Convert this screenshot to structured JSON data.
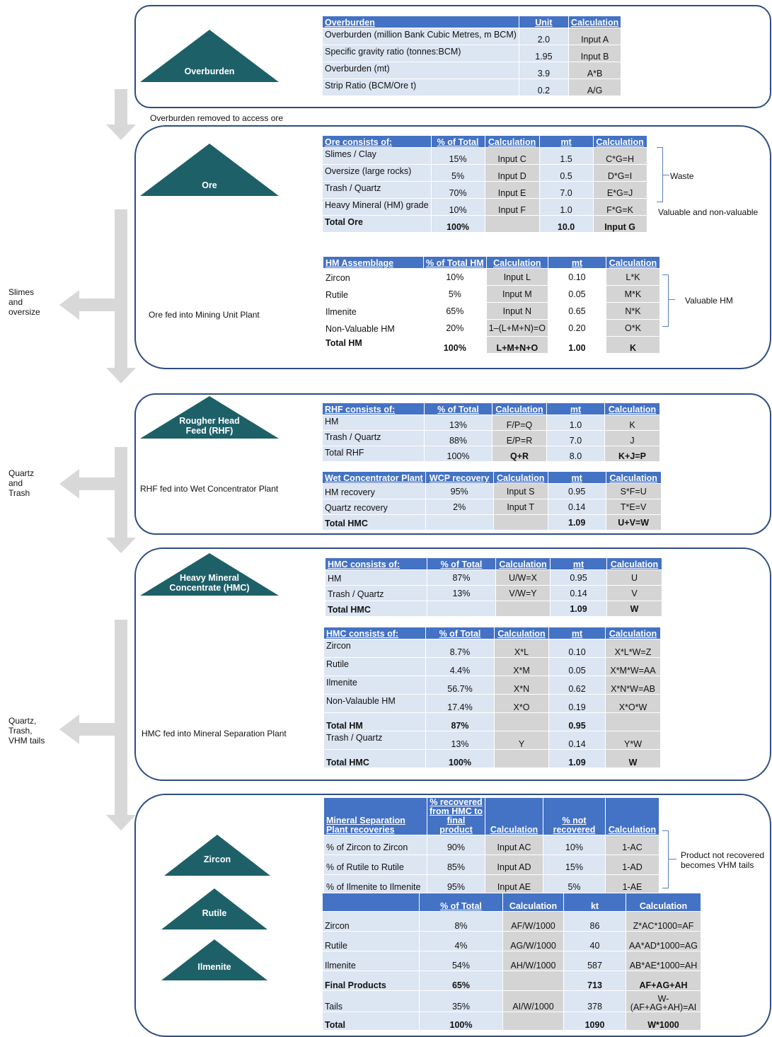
{
  "stage_labels": {
    "overburden": "Overburden",
    "ore": "Ore",
    "rhf": [
      "Rougher Head",
      "Feed (RHF)"
    ],
    "hmc": [
      "Heavy Mineral",
      "Concentrate (HMC)"
    ],
    "zircon": "Zircon",
    "rutile": "Rutile",
    "ilmenite": "Ilmenite"
  },
  "flow_labels": {
    "overburden_removed": "Overburden removed to access ore",
    "ore_fed": "Ore fed into Mining Unit Plant",
    "rhf_fed": "RHF fed into Wet Concentrator Plant",
    "hmc_fed": "HMC fed into Mineral Separation Plant"
  },
  "side_outputs": {
    "slimes": "Slimes\nand\noversize",
    "quartz_trash": "Quartz\nand\nTrash",
    "quartz_trash_vhm": "Quartz,\nTrash,\nVHM tails"
  },
  "braces": {
    "waste": "Waste",
    "valuable_nonvaluable": "Valuable and non-valuable",
    "valuable_hm": "Valuable HM",
    "vhm_tails": "Product not recovered\nbecomes VHM tails"
  },
  "tables": {
    "overburden": {
      "headers": [
        "Overburden",
        "Unit",
        "Calculation"
      ],
      "rows": [
        [
          "Overburden (million Bank Cubic Metres, m BCM)",
          "2.0",
          "Input A"
        ],
        [
          "Specific gravity ratio (tonnes:BCM)",
          "1.95",
          "Input B"
        ],
        [
          "Overburden (mt)",
          "3.9",
          "A*B"
        ],
        [
          "Strip Ratio (BCM/Ore t)",
          "0.2",
          "A/G"
        ]
      ]
    },
    "ore": {
      "headers": [
        "Ore consists of:",
        "% of Total",
        "Calculation",
        "mt",
        "Calculation"
      ],
      "rows": [
        [
          "Slimes / Clay",
          "15%",
          "Input C",
          "1.5",
          "C*G=H"
        ],
        [
          "Oversize (large rocks)",
          "5%",
          "Input D",
          "0.5",
          "D*G=I"
        ],
        [
          "Trash / Quartz",
          "70%",
          "Input E",
          "7.0",
          "E*G=J"
        ],
        [
          "Heavy Mineral (HM) grade",
          "10%",
          "Input F",
          "1.0",
          "F*G=K"
        ],
        [
          "Total Ore",
          "100%",
          "",
          "10.0",
          "Input  G"
        ]
      ]
    },
    "hm_assemblage": {
      "headers": [
        "HM Assemblage",
        "% of Total HM",
        "Calculation",
        "mt",
        "Calculation"
      ],
      "rows": [
        [
          "Zircon",
          "10%",
          "Input L",
          "0.10",
          "L*K"
        ],
        [
          "Rutile",
          "5%",
          "Input M",
          "0.05",
          "M*K"
        ],
        [
          "Ilmenite",
          "65%",
          "Input N",
          "0.65",
          "N*K"
        ],
        [
          "Non-Valuable HM",
          "20%",
          "1–(L+M+N)=O",
          "0.20",
          "O*K"
        ],
        [
          "Total HM",
          "100%",
          "L+M+N+O",
          "1.00",
          "K"
        ]
      ]
    },
    "rhf": {
      "headers": [
        "RHF consists of:",
        "% of Total",
        "Calculation",
        "mt",
        "Calculation"
      ],
      "rows": [
        [
          "HM",
          "13%",
          "F/P=Q",
          "1.0",
          "K"
        ],
        [
          "Trash / Quartz",
          "88%",
          "E/P=R",
          "7.0",
          "J"
        ],
        [
          "Total RHF",
          "100%",
          "Q+R",
          "8.0",
          "K+J=P"
        ]
      ]
    },
    "wcp": {
      "headers": [
        "Wet Concentrator Plant",
        "WCP recovery",
        "Calculation",
        "mt",
        "Calculation"
      ],
      "rows": [
        [
          "HM recovery",
          "95%",
          "Input S",
          "0.95",
          "S*F=U"
        ],
        [
          "Quartz recovery",
          "2%",
          "Input T",
          "0.14",
          "T*E=V"
        ],
        [
          "Total HMC",
          "",
          "",
          "1.09",
          "U+V=W"
        ]
      ]
    },
    "hmc1": {
      "headers": [
        "HMC consists  of:",
        "% of Total",
        "Calculation",
        "mt",
        "Calculation"
      ],
      "rows": [
        [
          "HM",
          "87%",
          "U/W=X",
          "0.95",
          "U"
        ],
        [
          "Trash / Quartz",
          "13%",
          "V/W=Y",
          "0.14",
          "V"
        ],
        [
          "Total HMC",
          "",
          "",
          "1.09",
          "W"
        ]
      ]
    },
    "hmc2": {
      "headers": [
        "HMC consists  of:",
        "% of Total",
        "Calculation",
        "mt",
        "Calculation"
      ],
      "rows": [
        [
          "Zircon",
          "8.7%",
          "X*L",
          "0.10",
          "X*L*W=Z"
        ],
        [
          "Rutile",
          "4.4%",
          "X*M",
          "0.05",
          "X*M*W=AA"
        ],
        [
          "Ilmenite",
          "56.7%",
          "X*N",
          "0.62",
          "X*N*W=AB"
        ],
        [
          "Non-Valauble HM",
          "17.4%",
          "X*O",
          "0.19",
          "X*O*W"
        ],
        [
          "Total HM",
          "87%",
          "",
          "0.95",
          ""
        ],
        [
          "Trash / Quartz",
          "13%",
          "Y",
          "0.14",
          "Y*W"
        ],
        [
          "Total HMC",
          "100%",
          "",
          "1.09",
          "W"
        ]
      ]
    },
    "msp": {
      "headers": [
        "Mineral Separation\nPlant recoveries",
        "% recovered\nfrom HMC to\nfinal product",
        "Calculation",
        "% not\nrecovered",
        "Calculation"
      ],
      "rows": [
        [
          "% of Zircon to Zircon",
          "90%",
          "Input AC",
          "10%",
          "1-AC"
        ],
        [
          "% of Rutile to Rutile",
          "85%",
          "Input AD",
          "15%",
          "1-AD"
        ],
        [
          "% of Ilmenite to Ilmenite",
          "95%",
          "Input AE",
          "5%",
          "1-AE"
        ]
      ]
    },
    "final": {
      "headers": [
        "",
        "% of Total",
        "Calculation",
        "kt",
        "Calculation"
      ],
      "rows": [
        [
          "Zircon",
          "8%",
          "AF/W/1000",
          "86",
          "Z*AC*1000=AF"
        ],
        [
          "Rutile",
          "4%",
          "AG/W/1000",
          "40",
          "AA*AD*1000=AG"
        ],
        [
          "Ilmenite",
          "54%",
          "AH/W/1000",
          "587",
          "AB*AE*1000=AH"
        ],
        [
          "Final Products",
          "65%",
          "",
          "713",
          "AF+AG+AH"
        ],
        [
          "Tails",
          "35%",
          "AI/W/1000",
          "378",
          "W-\n(AF+AG+AH)=AI"
        ],
        [
          "Total",
          "100%",
          "",
          "1090",
          "W*1000"
        ]
      ]
    }
  }
}
